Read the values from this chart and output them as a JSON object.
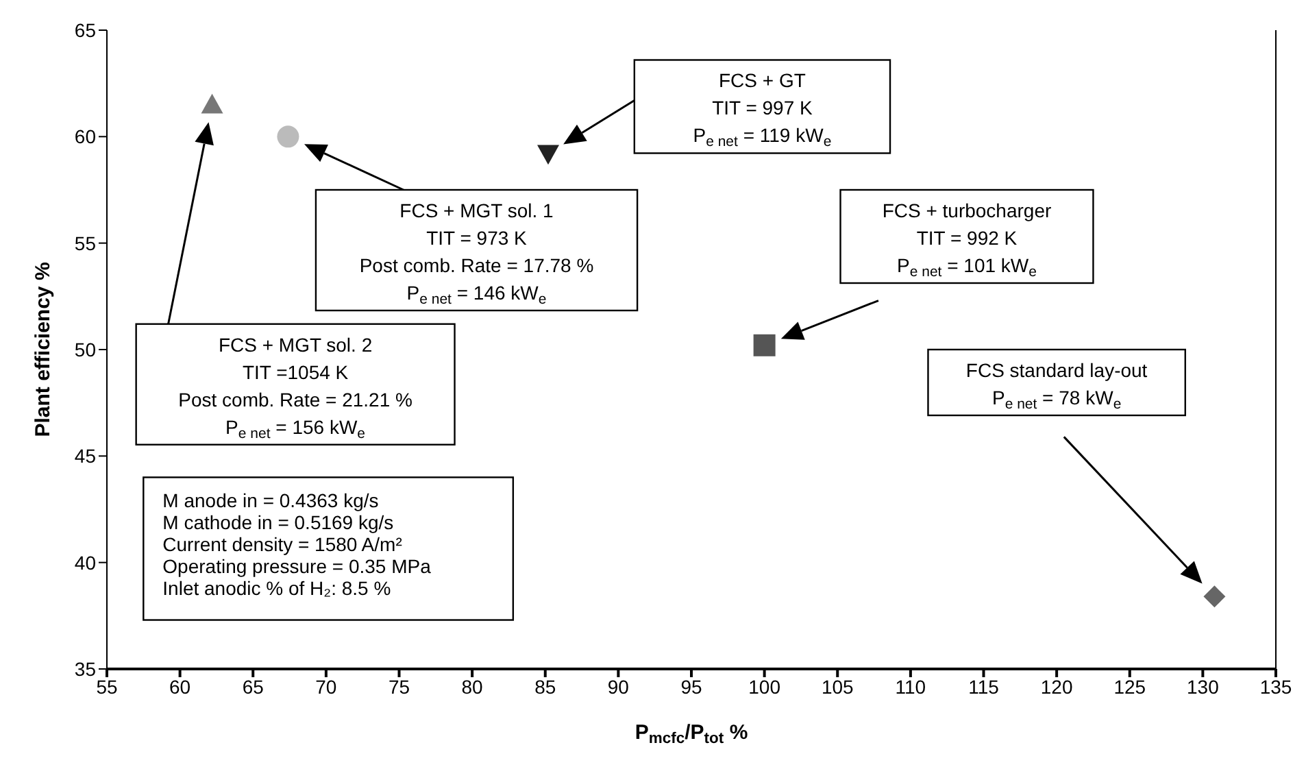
{
  "chart_data": {
    "type": "scatter",
    "xlabel": "P$_{mcfc}$/P$_{tot}$ %",
    "ylabel": "Plant efficiency %",
    "xlim": [
      55,
      135
    ],
    "xticks": [
      55,
      60,
      65,
      70,
      75,
      80,
      85,
      90,
      95,
      100,
      105,
      110,
      115,
      120,
      125,
      130,
      135
    ],
    "ylim": [
      35,
      65
    ],
    "yticks": [
      35,
      40,
      45,
      50,
      55,
      60,
      65
    ],
    "grid": false,
    "legend": false,
    "series": [
      {
        "color": "#777777",
        "marker": "triangle",
        "x": [
          62.2
        ],
        "values": [
          61.5
        ]
      },
      {
        "color": "#bbbbbb",
        "marker": "circle",
        "x": [
          67.4
        ],
        "values": [
          60
        ]
      },
      {
        "color": "#222222",
        "marker": "triangle-down",
        "x": [
          85.2
        ],
        "values": [
          59.2
        ]
      },
      {
        "color": "#555555",
        "marker": "square",
        "x": [
          100
        ],
        "values": [
          50.2
        ]
      },
      {
        "color": "#666666",
        "marker": "diamond",
        "x": [
          130.8
        ],
        "values": [
          38.4
        ]
      }
    ],
    "annotations": [
      "FCS + MGT sol. 2\nTIT =1054 K\nPost comb. Rate = 21.21 %\nP$_{e net}$ = 156 kW$_{e}$",
      "FCS + MGT sol. 1\nTIT = 973 K\nPost comb. Rate = 17.78 %\nP$_{e net}$ = 146 kW$_{e}$",
      "FCS + GT\nTIT = 997 K\nP$_{e net}$ = 119 kW$_{e}$",
      "FCS + turbocharger\nTIT = 992 K\nP$_{e net}$ = 101 kW$_{e}$",
      "FCS standard lay-out\nP$_{e net}$ = 78 kW$_{e}$",
      "M anode in = 0.4363 kg/s\nM cathode in = 0.5169 kg/s\nCurrent density = 1580 A/m²\nOperating pressure = 0.35 MPa\nInlet anodic % of H₂: 8.5 %"
    ]
  }
}
